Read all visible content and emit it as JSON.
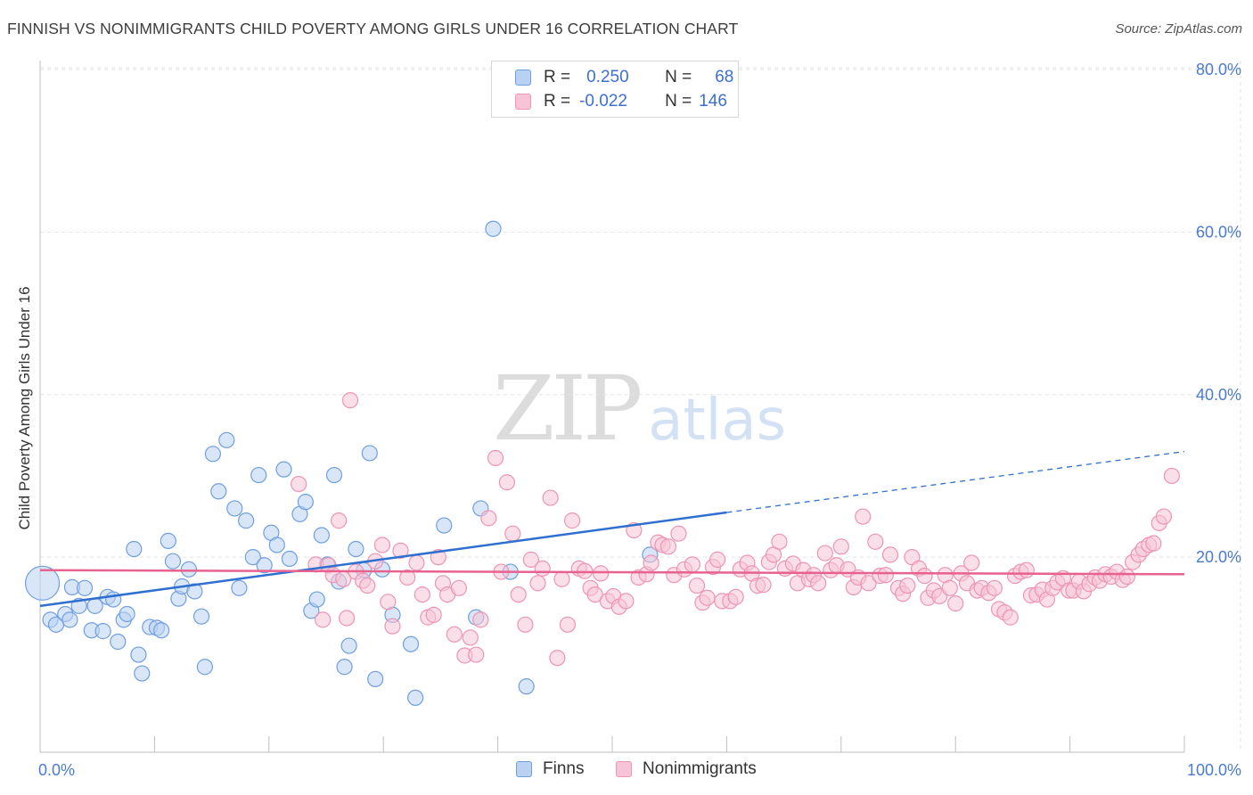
{
  "title": "FINNISH VS NONIMMIGRANTS CHILD POVERTY AMONG GIRLS UNDER 16 CORRELATION CHART",
  "source": "Source: ZipAtlas.com",
  "watermark": {
    "zip": "ZIP",
    "atlas": "atlas"
  },
  "legend_box": {
    "rows": [
      {
        "r_label": "R =",
        "r_value": "0.250",
        "n_label": "N =",
        "n_value": "68"
      },
      {
        "r_label": "R =",
        "r_value": "-0.022",
        "n_label": "N =",
        "n_value": "146"
      }
    ]
  },
  "chart_data": {
    "type": "scatter",
    "ylabel": "Child Poverty Among Girls Under 16",
    "xlim": [
      0,
      100
    ],
    "ylim": [
      0,
      80
    ],
    "x_tick_labels": [
      "0.0%",
      "100.0%"
    ],
    "y_ticks": [
      20,
      40,
      60,
      80
    ],
    "y_tick_labels": [
      "20.0%",
      "40.0%",
      "60.0%",
      "80.0%"
    ],
    "grid": true,
    "legend_placement": "bottom",
    "series": [
      {
        "name": "Finns",
        "color": "#6f9fe0",
        "fill": "#b9d1f3",
        "line_color": "#2f6fd0",
        "r": 0.25,
        "n": 68,
        "trend": {
          "x0": 0,
          "y0": 14.0,
          "x1": 60,
          "y1": 25.5,
          "dashed_to_x": 100,
          "dashed_to_y": 33.0
        },
        "points": [
          [
            0.2,
            16.8
          ],
          [
            0.9,
            12.3
          ],
          [
            1.4,
            11.7
          ],
          [
            2.2,
            13.0
          ],
          [
            2.6,
            12.3
          ],
          [
            2.8,
            16.3
          ],
          [
            3.4,
            14.0
          ],
          [
            3.9,
            16.2
          ],
          [
            4.5,
            11.0
          ],
          [
            4.8,
            14.0
          ],
          [
            5.5,
            10.9
          ],
          [
            5.9,
            15.1
          ],
          [
            6.4,
            14.8
          ],
          [
            6.8,
            9.6
          ],
          [
            7.3,
            12.3
          ],
          [
            7.6,
            13.0
          ],
          [
            8.2,
            21.0
          ],
          [
            8.6,
            8.0
          ],
          [
            8.9,
            5.7
          ],
          [
            9.6,
            11.4
          ],
          [
            10.2,
            11.3
          ],
          [
            10.6,
            11.0
          ],
          [
            11.2,
            22.0
          ],
          [
            11.6,
            19.5
          ],
          [
            12.1,
            14.9
          ],
          [
            12.4,
            16.4
          ],
          [
            13.0,
            18.5
          ],
          [
            13.5,
            15.8
          ],
          [
            14.1,
            12.7
          ],
          [
            14.4,
            6.5
          ],
          [
            15.1,
            32.7
          ],
          [
            15.6,
            28.1
          ],
          [
            16.3,
            34.4
          ],
          [
            17.0,
            26.0
          ],
          [
            17.4,
            16.2
          ],
          [
            18.0,
            24.5
          ],
          [
            18.6,
            20.0
          ],
          [
            19.1,
            30.1
          ],
          [
            19.6,
            19.0
          ],
          [
            20.2,
            23.0
          ],
          [
            20.7,
            21.5
          ],
          [
            21.3,
            30.8
          ],
          [
            21.8,
            19.8
          ],
          [
            22.7,
            25.3
          ],
          [
            23.2,
            26.8
          ],
          [
            23.7,
            13.4
          ],
          [
            24.2,
            14.8
          ],
          [
            24.6,
            22.7
          ],
          [
            25.1,
            19.1
          ],
          [
            25.7,
            30.1
          ],
          [
            26.1,
            17.0
          ],
          [
            26.6,
            6.5
          ],
          [
            27.0,
            9.1
          ],
          [
            27.6,
            21.0
          ],
          [
            28.3,
            18.4
          ],
          [
            28.8,
            32.8
          ],
          [
            29.3,
            5.0
          ],
          [
            29.9,
            18.5
          ],
          [
            30.8,
            12.9
          ],
          [
            32.4,
            9.3
          ],
          [
            32.8,
            2.7
          ],
          [
            35.3,
            23.9
          ],
          [
            38.1,
            12.6
          ],
          [
            38.5,
            26.0
          ],
          [
            39.6,
            60.4
          ],
          [
            41.1,
            18.2
          ],
          [
            42.5,
            4.1
          ],
          [
            53.3,
            20.3
          ]
        ]
      },
      {
        "name": "Nonimmigrants",
        "color": "#ee94b4",
        "fill": "#f6c4d6",
        "line_color": "#e8628f",
        "r": -0.022,
        "n": 146,
        "trend": {
          "x0": 0,
          "y0": 18.4,
          "x1": 100,
          "y1": 17.9
        },
        "points": [
          [
            22.6,
            29.0
          ],
          [
            24.1,
            19.1
          ],
          [
            24.7,
            12.3
          ],
          [
            25.2,
            19.0
          ],
          [
            25.6,
            17.8
          ],
          [
            26.1,
            24.5
          ],
          [
            26.5,
            17.3
          ],
          [
            26.8,
            12.5
          ],
          [
            27.1,
            39.3
          ],
          [
            27.6,
            18.2
          ],
          [
            28.2,
            17.1
          ],
          [
            28.6,
            16.5
          ],
          [
            29.3,
            19.5
          ],
          [
            29.9,
            21.5
          ],
          [
            30.4,
            14.5
          ],
          [
            30.8,
            11.5
          ],
          [
            31.5,
            20.8
          ],
          [
            32.1,
            17.5
          ],
          [
            32.9,
            19.3
          ],
          [
            33.4,
            15.4
          ],
          [
            33.9,
            12.6
          ],
          [
            34.4,
            12.9
          ],
          [
            34.8,
            20.0
          ],
          [
            35.2,
            16.8
          ],
          [
            35.6,
            15.4
          ],
          [
            36.2,
            10.5
          ],
          [
            36.6,
            16.2
          ],
          [
            37.1,
            7.9
          ],
          [
            37.6,
            10.1
          ],
          [
            38.1,
            8.0
          ],
          [
            38.5,
            12.3
          ],
          [
            39.2,
            24.8
          ],
          [
            39.8,
            32.2
          ],
          [
            40.3,
            18.2
          ],
          [
            40.8,
            29.2
          ],
          [
            41.3,
            22.9
          ],
          [
            41.8,
            15.4
          ],
          [
            42.4,
            11.7
          ],
          [
            42.9,
            19.7
          ],
          [
            43.5,
            16.8
          ],
          [
            43.9,
            18.6
          ],
          [
            44.6,
            27.3
          ],
          [
            45.2,
            7.6
          ],
          [
            45.6,
            17.3
          ],
          [
            46.1,
            11.7
          ],
          [
            46.5,
            24.5
          ],
          [
            47.1,
            18.6
          ],
          [
            47.6,
            18.3
          ],
          [
            48.1,
            16.2
          ],
          [
            48.5,
            15.4
          ],
          [
            49.0,
            18.0
          ],
          [
            49.6,
            14.6
          ],
          [
            50.1,
            15.2
          ],
          [
            50.6,
            13.9
          ],
          [
            51.2,
            14.6
          ],
          [
            51.9,
            23.3
          ],
          [
            52.3,
            17.5
          ],
          [
            53.0,
            17.9
          ],
          [
            53.4,
            19.3
          ],
          [
            54.0,
            21.8
          ],
          [
            54.4,
            21.5
          ],
          [
            54.9,
            21.3
          ],
          [
            55.4,
            17.8
          ],
          [
            55.8,
            22.9
          ],
          [
            56.3,
            18.5
          ],
          [
            57.0,
            19.1
          ],
          [
            57.4,
            16.5
          ],
          [
            57.9,
            14.4
          ],
          [
            58.3,
            15.0
          ],
          [
            58.8,
            18.8
          ],
          [
            59.2,
            19.7
          ],
          [
            59.6,
            14.6
          ],
          [
            60.3,
            14.6
          ],
          [
            60.8,
            15.1
          ],
          [
            61.2,
            18.5
          ],
          [
            61.8,
            19.3
          ],
          [
            62.2,
            18.0
          ],
          [
            62.7,
            16.5
          ],
          [
            63.2,
            16.6
          ],
          [
            63.7,
            19.4
          ],
          [
            64.1,
            20.3
          ],
          [
            64.6,
            21.9
          ],
          [
            65.1,
            18.6
          ],
          [
            65.8,
            19.2
          ],
          [
            66.2,
            16.8
          ],
          [
            66.7,
            18.4
          ],
          [
            67.2,
            17.3
          ],
          [
            67.6,
            17.8
          ],
          [
            68.0,
            16.8
          ],
          [
            68.6,
            20.5
          ],
          [
            69.1,
            18.4
          ],
          [
            69.6,
            19.0
          ],
          [
            70.0,
            21.3
          ],
          [
            70.6,
            18.5
          ],
          [
            71.1,
            16.3
          ],
          [
            71.5,
            17.5
          ],
          [
            71.9,
            25.0
          ],
          [
            72.4,
            16.8
          ],
          [
            73.0,
            21.9
          ],
          [
            73.4,
            17.7
          ],
          [
            73.9,
            17.8
          ],
          [
            74.3,
            20.3
          ],
          [
            75.0,
            16.2
          ],
          [
            75.4,
            15.5
          ],
          [
            75.8,
            16.5
          ],
          [
            76.2,
            20.0
          ],
          [
            76.8,
            18.6
          ],
          [
            77.3,
            17.7
          ],
          [
            77.6,
            15.0
          ],
          [
            78.1,
            15.9
          ],
          [
            78.6,
            15.2
          ],
          [
            79.1,
            17.8
          ],
          [
            79.5,
            16.2
          ],
          [
            80.0,
            14.3
          ],
          [
            80.5,
            18.0
          ],
          [
            81.0,
            16.8
          ],
          [
            81.4,
            19.3
          ],
          [
            81.9,
            15.9
          ],
          [
            82.3,
            16.2
          ],
          [
            82.9,
            15.6
          ],
          [
            83.4,
            16.2
          ],
          [
            83.8,
            13.6
          ],
          [
            84.3,
            13.2
          ],
          [
            84.8,
            12.6
          ],
          [
            85.2,
            17.7
          ],
          [
            85.7,
            18.2
          ],
          [
            86.2,
            18.4
          ],
          [
            86.6,
            15.3
          ],
          [
            87.1,
            15.4
          ],
          [
            87.6,
            16.0
          ],
          [
            88.0,
            14.8
          ],
          [
            88.5,
            16.2
          ],
          [
            88.9,
            16.9
          ],
          [
            89.4,
            17.4
          ],
          [
            89.9,
            15.9
          ],
          [
            90.3,
            15.9
          ],
          [
            90.8,
            17.0
          ],
          [
            91.2,
            15.8
          ],
          [
            91.7,
            16.7
          ],
          [
            92.2,
            17.5
          ],
          [
            92.6,
            17.1
          ],
          [
            93.1,
            17.9
          ],
          [
            93.6,
            17.6
          ],
          [
            94.1,
            18.2
          ],
          [
            94.6,
            17.2
          ],
          [
            95.0,
            17.6
          ],
          [
            95.5,
            19.4
          ],
          [
            96.0,
            20.3
          ],
          [
            96.4,
            21.0
          ],
          [
            96.9,
            21.5
          ],
          [
            97.3,
            21.7
          ],
          [
            97.8,
            24.2
          ],
          [
            98.2,
            25.0
          ],
          [
            98.9,
            30.0
          ]
        ]
      }
    ]
  }
}
